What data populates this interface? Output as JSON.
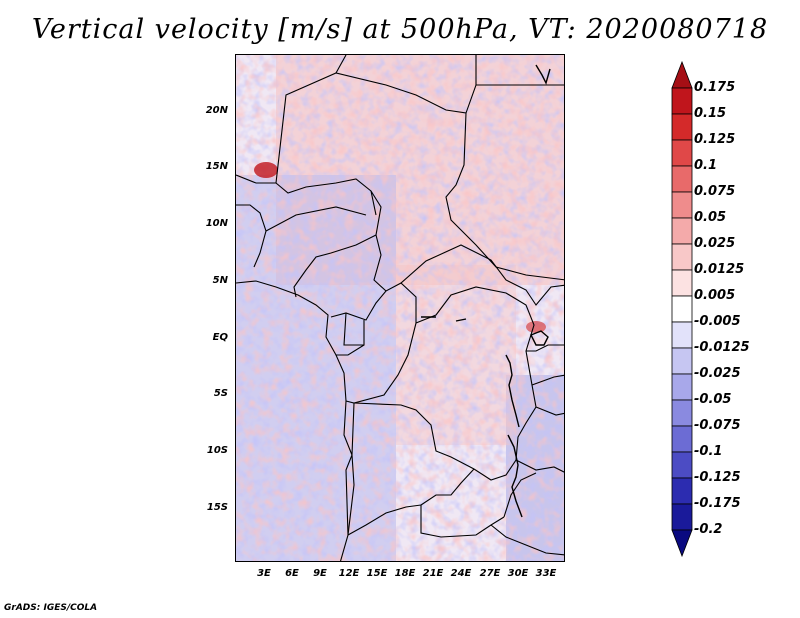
{
  "title": "Vertical velocity [m/s] at 500hPa, VT: 2020080718",
  "footer": "GrADS: IGES/COLA",
  "latitude_labels": [
    "20N",
    "15N",
    "10N",
    "5N",
    "EQ",
    "5S",
    "10S",
    "15S"
  ],
  "longitude_labels": [
    "3E",
    "6E",
    "9E",
    "12E",
    "15E",
    "18E",
    "21E",
    "24E",
    "27E",
    "30E",
    "33E"
  ],
  "colorbar": {
    "labels": [
      "0.175",
      "0.15",
      "0.125",
      "0.1",
      "0.075",
      "0.05",
      "0.025",
      "0.0125",
      "0.005",
      "-0.005",
      "-0.0125",
      "-0.025",
      "-0.05",
      "-0.075",
      "-0.1",
      "-0.125",
      "-0.175",
      "-0.2"
    ],
    "colors": [
      "#a50f15",
      "#c0151c",
      "#d42a2a",
      "#e04848",
      "#e86a6a",
      "#ef8c8c",
      "#f4aaaa",
      "#f8c8c8",
      "#fce2e2",
      "#ffffff",
      "#e2e2fa",
      "#c6c6f2",
      "#a8a8ea",
      "#8a8ae0",
      "#6c6cd4",
      "#4c4cc4",
      "#2c2cb0",
      "#1a1a9a",
      "#0a0a80"
    ]
  }
}
